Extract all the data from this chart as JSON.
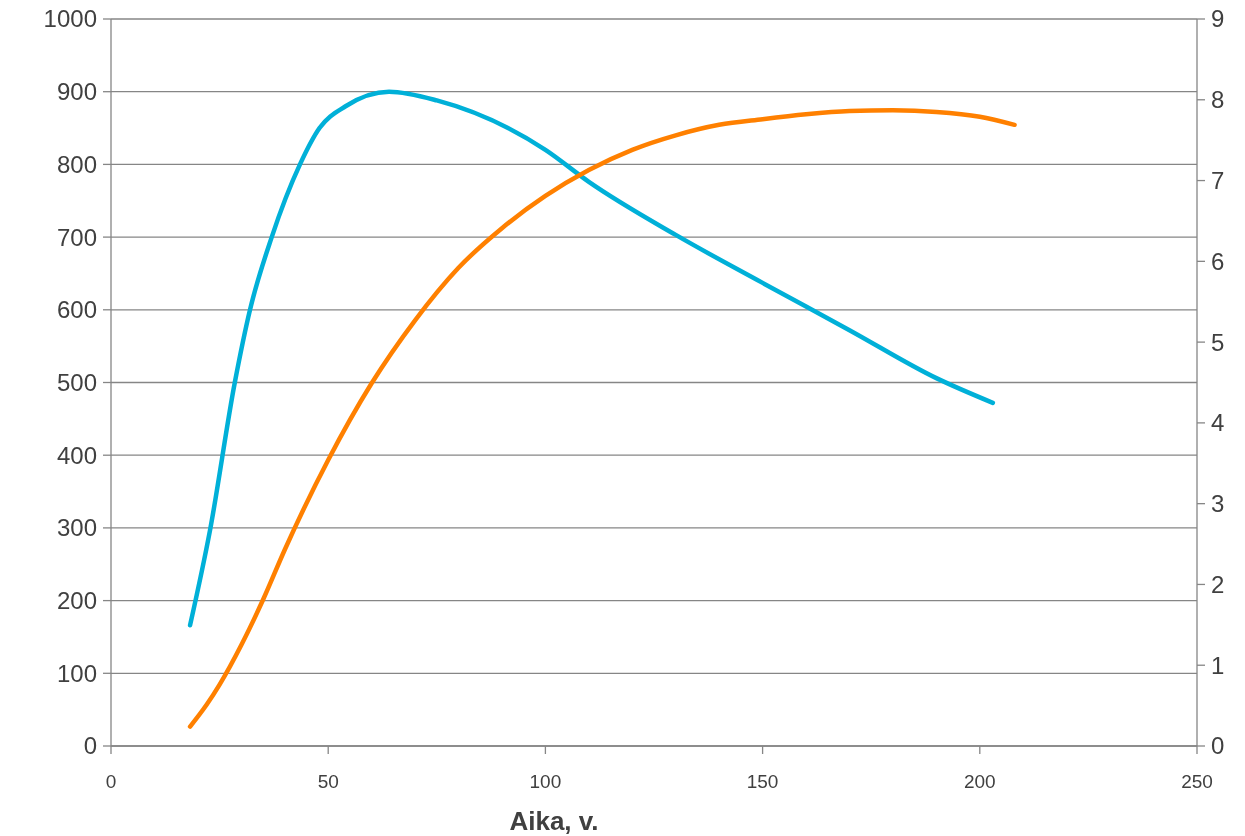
{
  "chart_data": {
    "type": "line",
    "xlabel": "Aika, v.",
    "xlim": [
      0,
      250
    ],
    "xticks": [
      0,
      50,
      100,
      150,
      200,
      250
    ],
    "ylim": [
      0,
      1000
    ],
    "yticks": [
      0,
      100,
      200,
      300,
      400,
      500,
      600,
      700,
      800,
      900,
      1000
    ],
    "y2lim": [
      0,
      9
    ],
    "y2ticks": [
      0,
      1,
      2,
      3,
      4,
      5,
      6,
      7,
      8,
      9
    ],
    "grid": "y",
    "marker": "none",
    "line_style": "solid",
    "series": [
      {
        "color": "#00b0d8",
        "x": [
          18.2,
          22.8,
          28.5,
          32,
          37,
          43.5,
          48,
          54,
          64,
          75,
          100,
          110,
          130,
          150,
          170,
          190,
          203
        ],
        "values": [
          166,
          297,
          500,
          600,
          700,
          800,
          850,
          880,
          900,
          888,
          820,
          776,
          703,
          637,
          572,
          506,
          472
        ]
      },
      {
        "color": "#ff8000",
        "axis": "y2",
        "x": [
          18.2,
          22,
          25,
          30,
          35,
          40,
          50,
          60,
          70,
          80,
          90,
          100,
          110,
          120,
          130,
          140,
          150,
          160,
          170,
          180,
          190,
          200,
          208
        ],
        "values": [
          0.24,
          0.51,
          0.76,
          1.25,
          1.81,
          2.43,
          3.54,
          4.49,
          5.27,
          5.92,
          6.41,
          6.81,
          7.13,
          7.38,
          7.56,
          7.69,
          7.76,
          7.82,
          7.86,
          7.87,
          7.85,
          7.79,
          7.69
        ]
      }
    ]
  }
}
